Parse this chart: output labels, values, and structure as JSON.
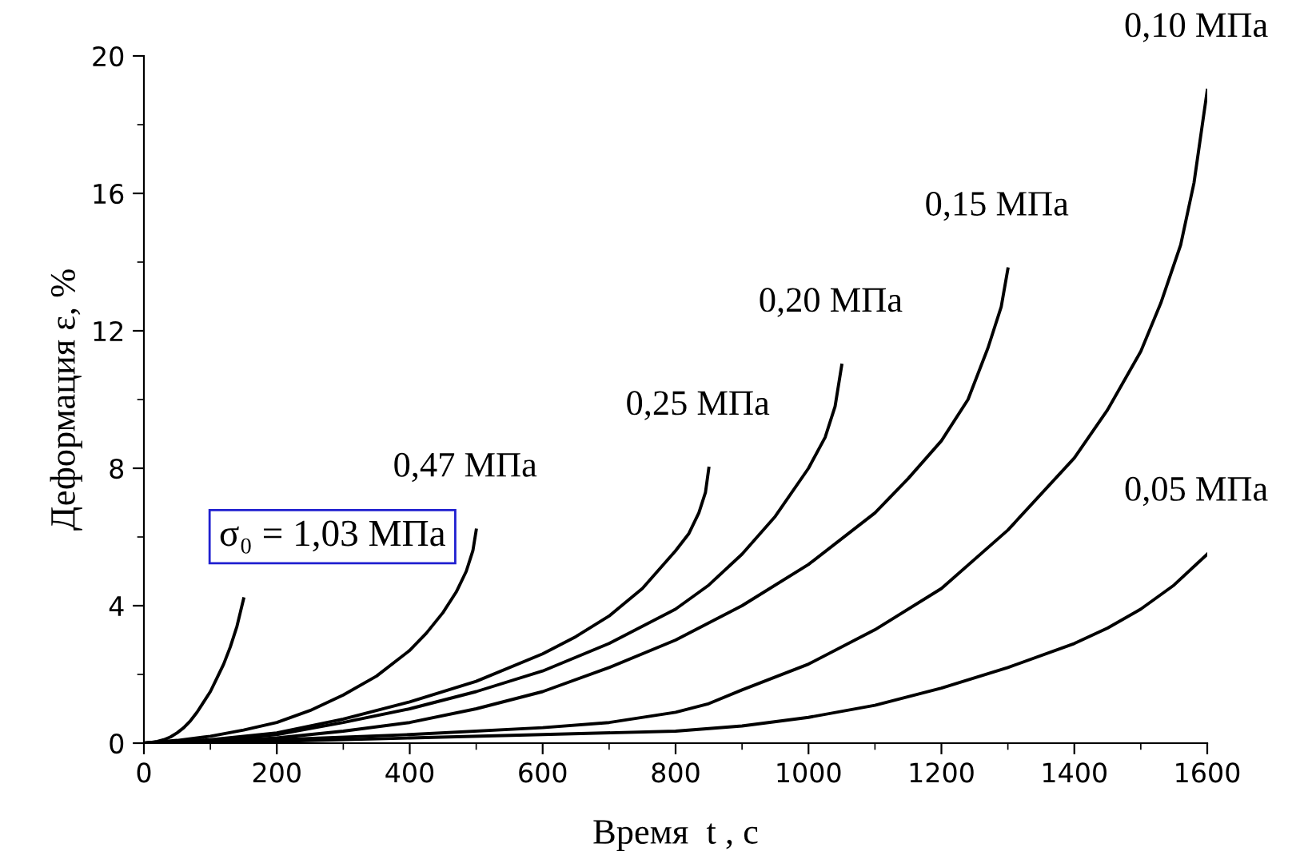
{
  "chart_data": {
    "type": "line",
    "xlabel": "Время  t , с",
    "ylabel": "Деформация ε, %",
    "xlim": [
      0,
      1600
    ],
    "ylim": [
      0,
      20
    ],
    "xticks": [
      0,
      200,
      400,
      600,
      800,
      1000,
      1200,
      1400,
      1600
    ],
    "yticks": [
      0,
      4,
      8,
      12,
      16,
      20
    ],
    "grid": false,
    "legend": false,
    "marker": "none",
    "line_style": "solid",
    "series": [
      {
        "color": "#000000",
        "x": [
          0,
          10,
          20,
          30,
          40,
          50,
          60,
          70,
          80,
          90,
          100,
          110,
          120,
          130,
          140,
          145,
          150
        ],
        "values": [
          0,
          0.02,
          0.05,
          0.1,
          0.18,
          0.3,
          0.45,
          0.65,
          0.9,
          1.2,
          1.5,
          1.9,
          2.3,
          2.8,
          3.4,
          3.8,
          4.2
        ]
      },
      {
        "color": "#000000",
        "x": [
          0,
          50,
          100,
          150,
          200,
          250,
          300,
          350,
          400,
          425,
          450,
          470,
          485,
          495,
          500
        ],
        "values": [
          0,
          0.08,
          0.2,
          0.38,
          0.6,
          0.95,
          1.4,
          1.95,
          2.7,
          3.2,
          3.8,
          4.4,
          5.0,
          5.6,
          6.2
        ]
      },
      {
        "color": "#000000",
        "x": [
          0,
          100,
          200,
          300,
          400,
          500,
          600,
          650,
          700,
          750,
          800,
          820,
          835,
          845,
          850
        ],
        "values": [
          0,
          0.1,
          0.3,
          0.7,
          1.2,
          1.8,
          2.6,
          3.1,
          3.7,
          4.5,
          5.6,
          6.1,
          6.7,
          7.3,
          8.0
        ]
      },
      {
        "color": "#000000",
        "x": [
          0,
          100,
          200,
          300,
          400,
          500,
          600,
          700,
          800,
          850,
          900,
          950,
          1000,
          1025,
          1040,
          1050
        ],
        "values": [
          0,
          0.08,
          0.25,
          0.6,
          1.0,
          1.5,
          2.1,
          2.9,
          3.9,
          4.6,
          5.5,
          6.6,
          8.0,
          8.9,
          9.8,
          11.0
        ]
      },
      {
        "color": "#000000",
        "x": [
          0,
          100,
          200,
          300,
          400,
          500,
          600,
          700,
          800,
          900,
          1000,
          1100,
          1150,
          1200,
          1240,
          1270,
          1290,
          1300
        ],
        "values": [
          0,
          0.05,
          0.15,
          0.35,
          0.6,
          1.0,
          1.5,
          2.2,
          3.0,
          4.0,
          5.2,
          6.7,
          7.7,
          8.8,
          10.0,
          11.5,
          12.7,
          13.8
        ]
      },
      {
        "color": "#000000",
        "x": [
          0,
          200,
          400,
          600,
          700,
          800,
          850,
          900,
          1000,
          1100,
          1200,
          1300,
          1400,
          1450,
          1500,
          1530,
          1560,
          1580,
          1600
        ],
        "values": [
          0,
          0.1,
          0.25,
          0.45,
          0.6,
          0.9,
          1.15,
          1.55,
          2.3,
          3.3,
          4.5,
          6.2,
          8.3,
          9.7,
          11.4,
          12.8,
          14.5,
          16.3,
          19.0
        ]
      },
      {
        "color": "#000000",
        "x": [
          0,
          200,
          400,
          600,
          800,
          900,
          1000,
          1100,
          1200,
          1300,
          1400,
          1450,
          1500,
          1550,
          1600
        ],
        "values": [
          0,
          0.05,
          0.15,
          0.25,
          0.35,
          0.5,
          0.75,
          1.1,
          1.6,
          2.2,
          2.9,
          3.35,
          3.9,
          4.6,
          5.5
        ]
      }
    ],
    "annotations": [
      {
        "text": "σ₀ = 1,03 МПа",
        "x": 150,
        "y": 4.2
      },
      {
        "text": "0,47 МПа",
        "x": 500,
        "y": 6.2
      },
      {
        "text": "0,25 МПа",
        "x": 850,
        "y": 8.0
      },
      {
        "text": "0,20 МПа",
        "x": 1050,
        "y": 11.0
      },
      {
        "text": "0,15 МПа",
        "x": 1300,
        "y": 13.8
      },
      {
        "text": "0,10 МПа",
        "x": 1600,
        "y": 19.0
      },
      {
        "text": "0,05 МПа",
        "x": 1600,
        "y": 5.5
      }
    ]
  }
}
